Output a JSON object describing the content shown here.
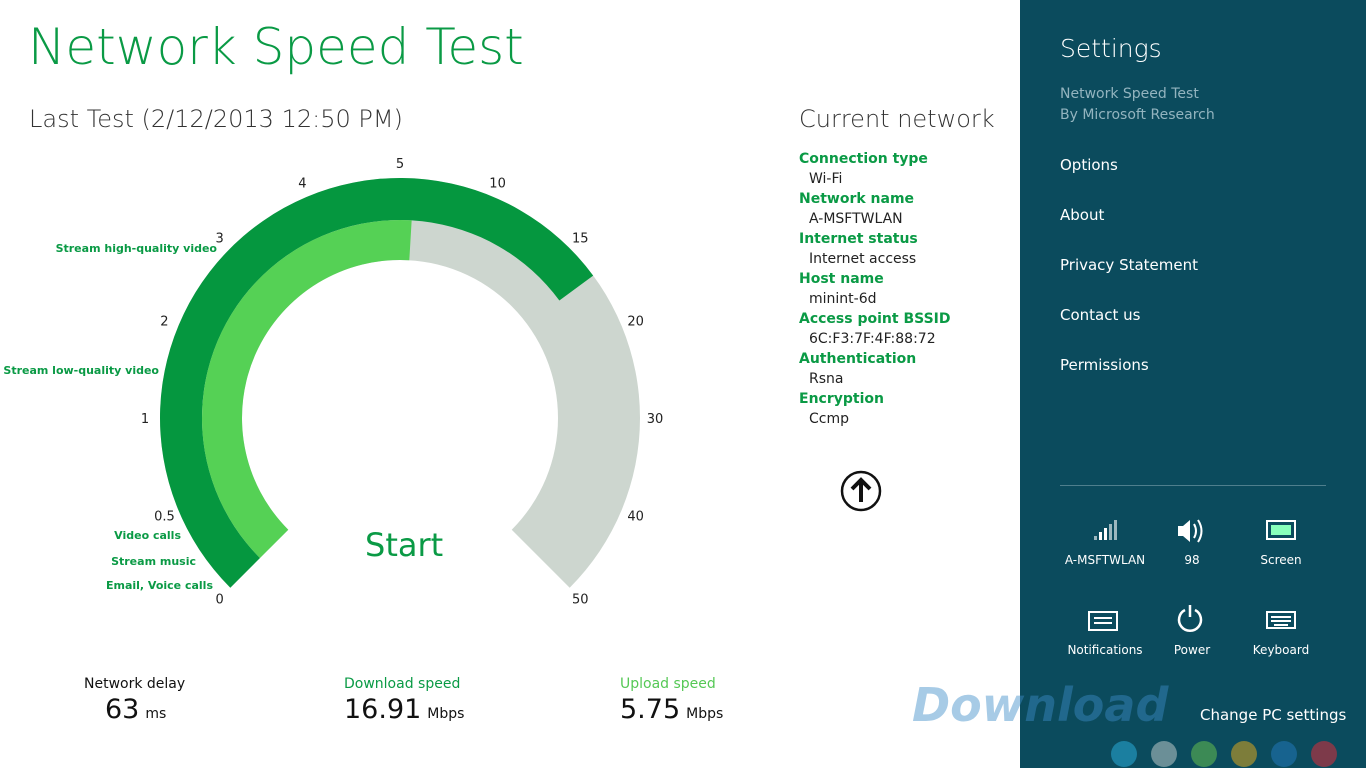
{
  "app": {
    "title": "Network Speed Test",
    "last_test": "Last Test (2/12/2013 12:50 PM)",
    "gauge": {
      "ticks": [
        0,
        0.5,
        1,
        2,
        3,
        4,
        5,
        10,
        15,
        20,
        30,
        40,
        50
      ],
      "activities": [
        "Stream high-quality video",
        "Stream low-quality video",
        "Video calls",
        "Stream music",
        "Email, Voice calls"
      ],
      "button": "Start"
    },
    "results": [
      {
        "label": "Network delay",
        "value": 63,
        "unit": "ms"
      },
      {
        "label": "Download speed",
        "value": 16.91,
        "unit": "Mbps"
      },
      {
        "label": "Upload speed",
        "value": 5.75,
        "unit": "Mbps"
      }
    ],
    "network": {
      "heading": "Current network",
      "fields": [
        {
          "label": "Connection type",
          "value": "Wi-Fi"
        },
        {
          "label": "Network name",
          "value": "A-MSFTWLAN"
        },
        {
          "label": "Internet status",
          "value": "Internet access"
        },
        {
          "label": "Host name",
          "value": "minint-6d"
        },
        {
          "label": "Access point BSSID",
          "value": "6C:F3:7F:4F:88:72"
        },
        {
          "label": "Authentication",
          "value": "Rsna"
        },
        {
          "label": "Encryption",
          "value": "Ccmp"
        }
      ]
    }
  },
  "settings": {
    "title": "Settings",
    "app_name": "Network Speed Test",
    "publisher": "By Microsoft Research",
    "links": [
      "Options",
      "About",
      "Privacy Statement",
      "Contact us",
      "Permissions"
    ],
    "quick": [
      "A-MSFTWLAN",
      "98",
      "Screen",
      "Notifications",
      "Power",
      "Keyboard"
    ],
    "change": "Change PC settings"
  },
  "watermark": "Download"
}
